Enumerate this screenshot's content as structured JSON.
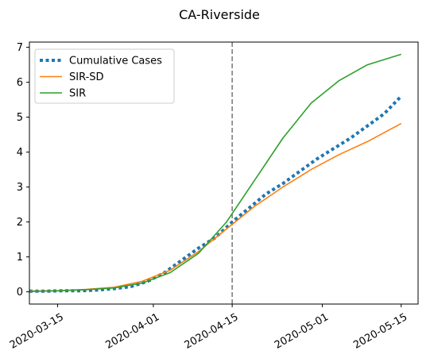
{
  "chart_data": {
    "type": "line",
    "title": "CA-Riverside",
    "xlabel": "",
    "ylabel": "",
    "x_axis_kind": "date",
    "xlim": [
      "2020-03-10",
      "2020-05-18"
    ],
    "ylim": [
      -0.35,
      7.15
    ],
    "x_ticks": [
      "2020-03-15",
      "2020-04-01",
      "2020-04-15",
      "2020-05-01",
      "2020-05-15"
    ],
    "y_ticks": [
      0,
      1,
      2,
      3,
      4,
      5,
      6,
      7
    ],
    "grid": false,
    "legend_position": "upper left",
    "vline": {
      "x": "2020-04-15",
      "style": "dashed",
      "color": "#7f7f7f"
    },
    "series": [
      {
        "name": "Cumulative Cases",
        "style": "dotted",
        "color": "#1f77b4",
        "points": [
          [
            "2020-03-10",
            0.02
          ],
          [
            "2020-03-13",
            0.02
          ],
          [
            "2020-03-16",
            0.03
          ],
          [
            "2020-03-19",
            0.03
          ],
          [
            "2020-03-22",
            0.05
          ],
          [
            "2020-03-25",
            0.09
          ],
          [
            "2020-03-28",
            0.15
          ],
          [
            "2020-03-31",
            0.3
          ],
          [
            "2020-04-03",
            0.55
          ],
          [
            "2020-04-06",
            0.9
          ],
          [
            "2020-04-09",
            1.25
          ],
          [
            "2020-04-12",
            1.55
          ],
          [
            "2020-04-15",
            2.0
          ],
          [
            "2020-04-18",
            2.4
          ],
          [
            "2020-04-21",
            2.8
          ],
          [
            "2020-04-24",
            3.1
          ],
          [
            "2020-04-27",
            3.45
          ],
          [
            "2020-04-30",
            3.8
          ],
          [
            "2020-05-03",
            4.1
          ],
          [
            "2020-05-06",
            4.4
          ],
          [
            "2020-05-09",
            4.75
          ],
          [
            "2020-05-12",
            5.1
          ],
          [
            "2020-05-15",
            5.6
          ]
        ]
      },
      {
        "name": "SIR-SD",
        "style": "solid",
        "color": "#ff7f0e",
        "points": [
          [
            "2020-03-10",
            0.02
          ],
          [
            "2020-03-15",
            0.03
          ],
          [
            "2020-03-20",
            0.07
          ],
          [
            "2020-03-25",
            0.13
          ],
          [
            "2020-03-30",
            0.3
          ],
          [
            "2020-04-04",
            0.62
          ],
          [
            "2020-04-09",
            1.15
          ],
          [
            "2020-04-14",
            1.8
          ],
          [
            "2020-04-19",
            2.45
          ],
          [
            "2020-04-24",
            3.0
          ],
          [
            "2020-04-29",
            3.5
          ],
          [
            "2020-05-04",
            3.93
          ],
          [
            "2020-05-09",
            4.3
          ],
          [
            "2020-05-15",
            4.82
          ]
        ]
      },
      {
        "name": "SIR",
        "style": "solid",
        "color": "#2ca02c",
        "points": [
          [
            "2020-03-10",
            0.01
          ],
          [
            "2020-03-15",
            0.03
          ],
          [
            "2020-03-20",
            0.06
          ],
          [
            "2020-03-25",
            0.11
          ],
          [
            "2020-03-30",
            0.25
          ],
          [
            "2020-04-04",
            0.55
          ],
          [
            "2020-04-09",
            1.1
          ],
          [
            "2020-04-14",
            2.0
          ],
          [
            "2020-04-19",
            3.2
          ],
          [
            "2020-04-24",
            4.4
          ],
          [
            "2020-04-29",
            5.4
          ],
          [
            "2020-05-04",
            6.05
          ],
          [
            "2020-05-09",
            6.5
          ],
          [
            "2020-05-15",
            6.8
          ]
        ]
      }
    ]
  }
}
